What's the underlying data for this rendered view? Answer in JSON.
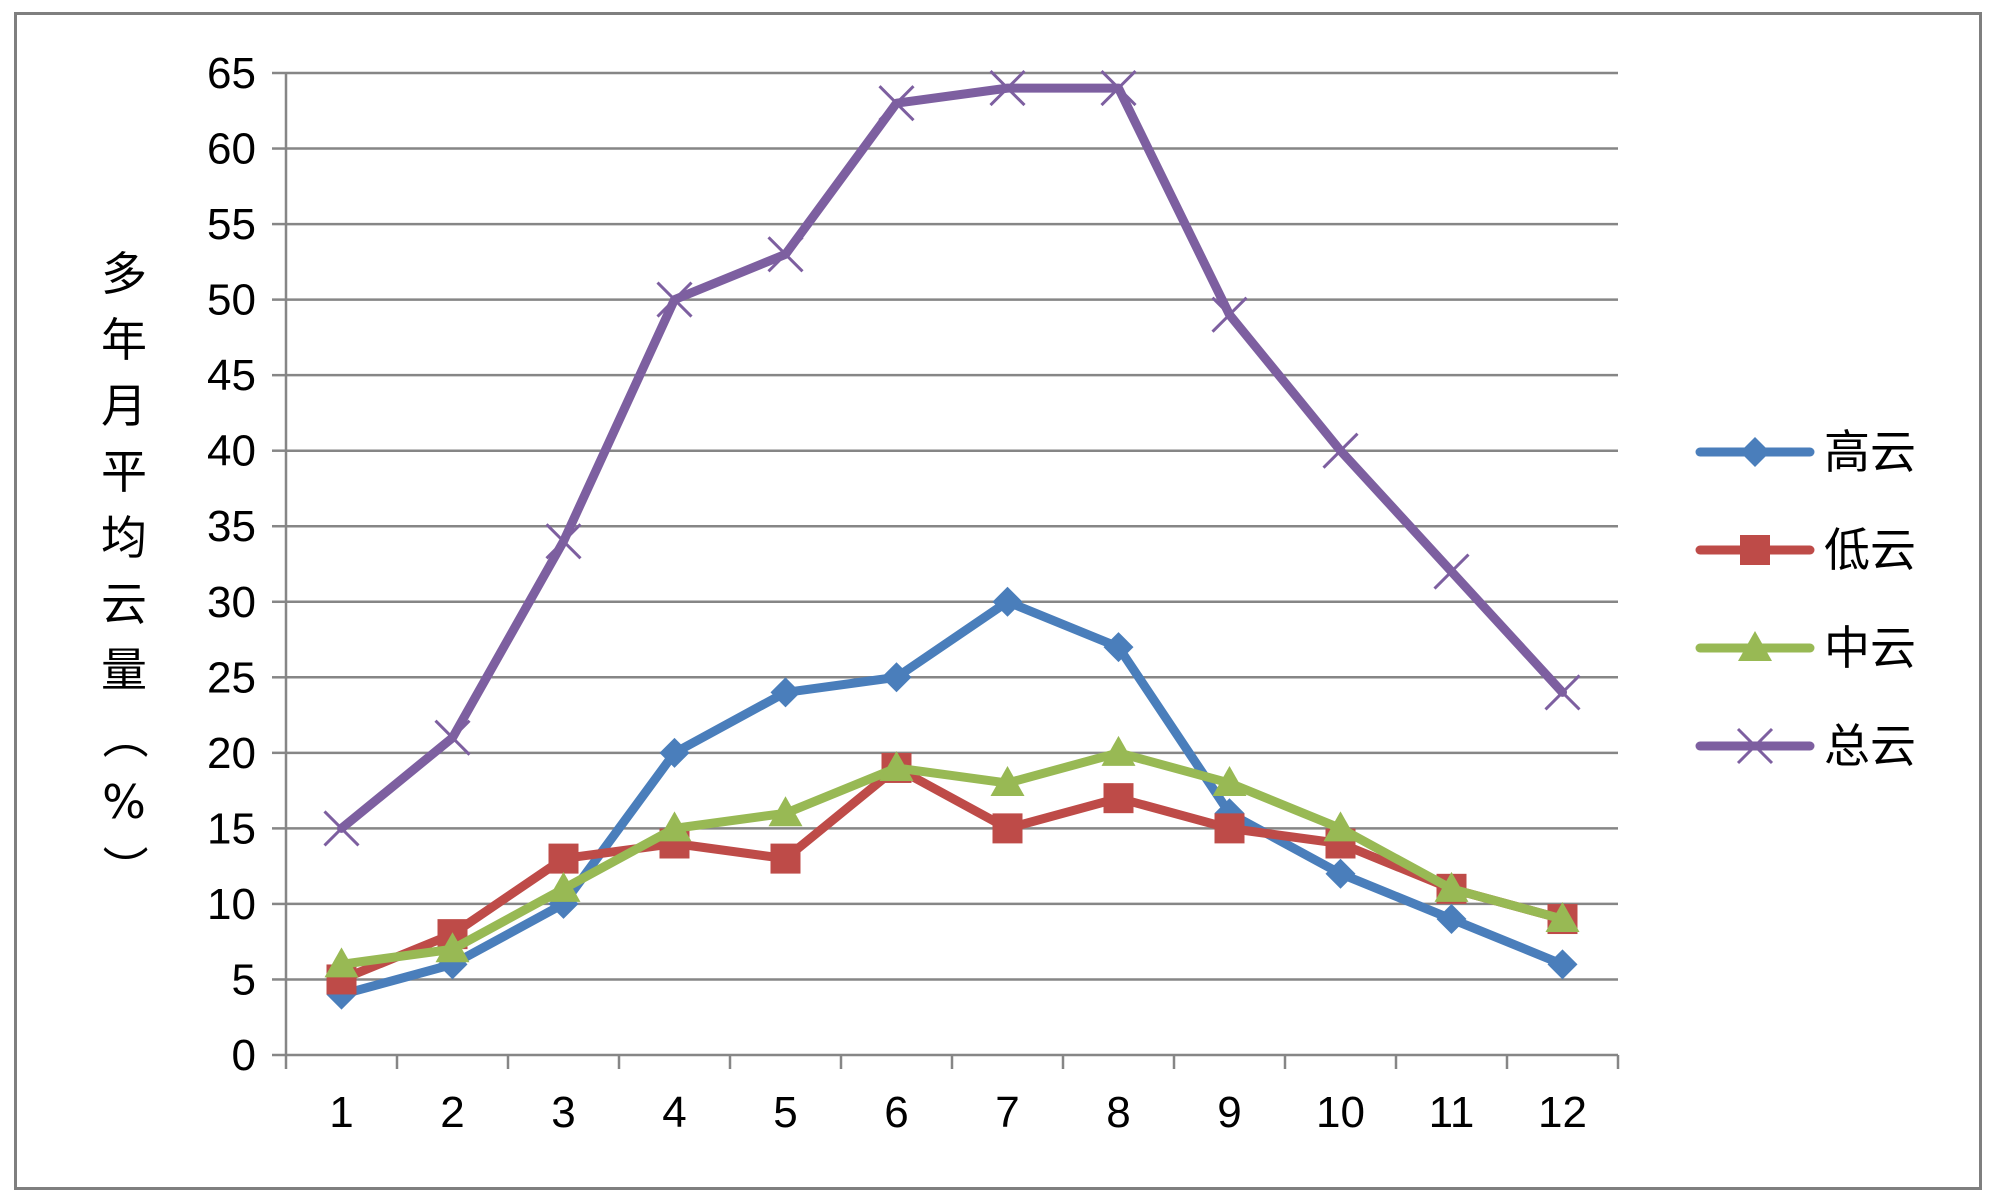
{
  "chart_data": {
    "type": "line",
    "title": "",
    "xlabel": "",
    "ylabel": "多年月平均云量（%）",
    "x": [
      1,
      2,
      3,
      4,
      5,
      6,
      7,
      8,
      9,
      10,
      11,
      12
    ],
    "ylim": [
      0,
      65
    ],
    "ytick_step": 5,
    "grid": "horizontal",
    "legend_position": "right",
    "series": [
      {
        "name": "高云",
        "color": "#4a7ebb",
        "marker": "diamond",
        "values": [
          4,
          6,
          10,
          20,
          24,
          25,
          30,
          27,
          16,
          12,
          9,
          6
        ]
      },
      {
        "name": "低云",
        "color": "#be4b48",
        "marker": "square",
        "values": [
          5,
          8,
          13,
          14,
          13,
          19,
          15,
          17,
          15,
          14,
          11,
          9
        ]
      },
      {
        "name": "中云",
        "color": "#98b954",
        "marker": "triangle",
        "values": [
          6,
          7,
          11,
          15,
          16,
          19,
          18,
          20,
          18,
          15,
          11,
          9
        ]
      },
      {
        "name": "总云",
        "color": "#7d5fa0",
        "marker": "x",
        "values": [
          15,
          21,
          34,
          50,
          53,
          63,
          64,
          64,
          49,
          40,
          32,
          24
        ]
      }
    ]
  }
}
